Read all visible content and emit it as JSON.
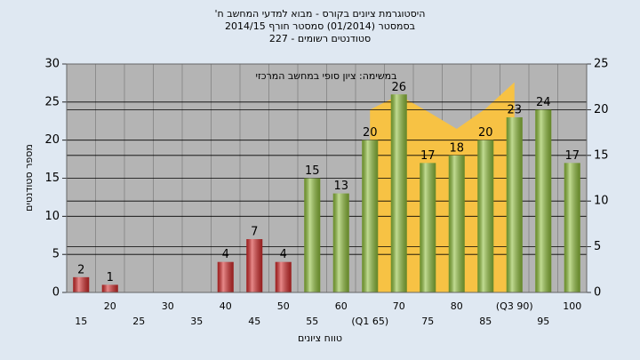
{
  "chart_data": {
    "type": "bar",
    "title": "היסטוגרמת ציונים בקורס - מבוא למדעי המחשב ח'",
    "subtitle": "בסמסטר  (01/2014)  סמסטר חורף 2014/15",
    "subtitle2": "סטודנטים רשומים - 227",
    "annotation": "במשימה: ציון סופי במחשב המרכזי",
    "x_label": "טווח ציונים",
    "y_label": "מספר סטודנטים",
    "categories": [
      "15",
      "20",
      "25",
      "30",
      "35",
      "40",
      "45",
      "50",
      "55",
      "60",
      "(Q1 65)",
      "70",
      "75",
      "80",
      "85",
      "(Q3 90)",
      "95",
      "100"
    ],
    "values": [
      2,
      1,
      0,
      0,
      0,
      4,
      7,
      4,
      15,
      13,
      20,
      26,
      17,
      18,
      20,
      23,
      24,
      17
    ],
    "colors": [
      "#d42a2a",
      "#d42a2a",
      "#d42a2a",
      "#d42a2a",
      "#d42a2a",
      "#d42a2a",
      "#d42a2a",
      "#d42a2a",
      "#8fbf3a",
      "#8fbf3a",
      "#8fbf3a",
      "#8fbf3a",
      "#8fbf3a",
      "#8fbf3a",
      "#8fbf3a",
      "#8fbf3a",
      "#8fbf3a",
      "#8fbf3a"
    ],
    "area": {
      "axis": "y2",
      "color": "#f7c244",
      "values": [
        null,
        null,
        null,
        null,
        null,
        null,
        null,
        null,
        null,
        null,
        20,
        21.6,
        19.8,
        17.9,
        20.1,
        23,
        null,
        null
      ]
    },
    "ylim": [
      0,
      30
    ],
    "yticks": [
      0,
      5,
      10,
      15,
      20,
      25,
      30
    ],
    "y2lim": [
      0,
      25
    ],
    "y2ticks": [
      0,
      5,
      10,
      15,
      20,
      25
    ],
    "grid": true
  }
}
